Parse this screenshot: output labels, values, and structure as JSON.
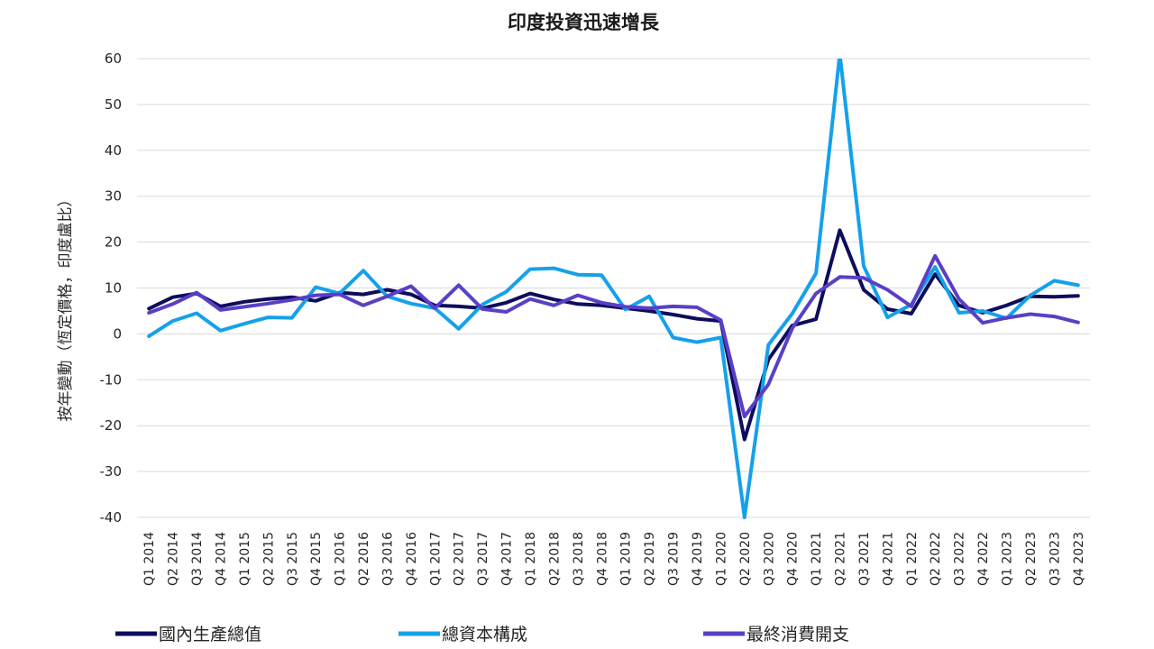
{
  "chart_data": {
    "type": "line",
    "title": "印度投資迅速增長",
    "ylabel": "按年變動（恆定價格，印度盧比）",
    "ylim": [
      -40,
      60
    ],
    "yticks": [
      60,
      50,
      40,
      30,
      20,
      10,
      0,
      -10,
      -20,
      -30,
      -40
    ],
    "grid": true,
    "legend_position": "bottom",
    "x": [
      "Q1 2014",
      "Q2 2014",
      "Q3 2014",
      "Q4 2014",
      "Q1 2015",
      "Q2 2015",
      "Q3 2015",
      "Q4 2015",
      "Q1 2016",
      "Q2 2016",
      "Q3 2016",
      "Q4 2016",
      "Q1 2017",
      "Q2 2017",
      "Q3 2017",
      "Q4 2017",
      "Q1 2018",
      "Q2 2018",
      "Q3 2018",
      "Q4 2018",
      "Q1 2019",
      "Q2 2019",
      "Q3 2019",
      "Q4 2019",
      "Q1 2020",
      "Q2 2020",
      "Q3 2020",
      "Q4 2020",
      "Q1 2021",
      "Q2 2021",
      "Q3 2021",
      "Q4 2021",
      "Q1 2022",
      "Q2 2022",
      "Q3 2022",
      "Q4 2022",
      "Q1 2023",
      "Q2 2023",
      "Q3 2023",
      "Q4 2023"
    ],
    "series": [
      {
        "name": "國內生產總值",
        "color": "#0d0d5c",
        "values": [
          5.5,
          8.0,
          8.8,
          6.0,
          7.0,
          7.6,
          8.0,
          7.2,
          9.0,
          8.6,
          9.6,
          8.6,
          6.2,
          6.0,
          5.6,
          6.8,
          8.8,
          7.5,
          6.5,
          6.2,
          5.6,
          5.0,
          4.2,
          3.3,
          2.8,
          -23.0,
          -5.6,
          1.8,
          3.2,
          22.6,
          9.6,
          5.4,
          4.4,
          13.0,
          6.2,
          4.6,
          6.2,
          8.2,
          8.1,
          8.3
        ]
      },
      {
        "name": "總資本構成",
        "color": "#15a1ea",
        "values": [
          -0.5,
          2.8,
          4.5,
          0.7,
          2.2,
          3.6,
          3.5,
          10.2,
          8.8,
          13.8,
          8.2,
          6.6,
          5.6,
          1.1,
          6.4,
          9.2,
          14.1,
          14.3,
          12.9,
          12.8,
          5.3,
          8.2,
          -0.8,
          -1.8,
          -0.8,
          -40.0,
          -2.4,
          4.4,
          13.2,
          61.0,
          14.8,
          3.6,
          6.4,
          14.6,
          4.6,
          5.0,
          3.4,
          8.4,
          11.6,
          10.6
        ]
      },
      {
        "name": "最終消費開支",
        "color": "#5a3fc6",
        "values": [
          4.6,
          6.5,
          9.0,
          5.2,
          5.9,
          6.6,
          7.4,
          8.4,
          8.6,
          6.2,
          8.2,
          10.4,
          5.6,
          10.6,
          5.4,
          4.8,
          7.6,
          6.2,
          8.4,
          6.8,
          5.9,
          5.6,
          6.0,
          5.8,
          3.0,
          -18.0,
          -11.0,
          1.2,
          8.8,
          12.4,
          12.2,
          9.6,
          6.0,
          17.0,
          7.6,
          2.4,
          3.5,
          4.3,
          3.8,
          2.5
        ]
      }
    ]
  }
}
